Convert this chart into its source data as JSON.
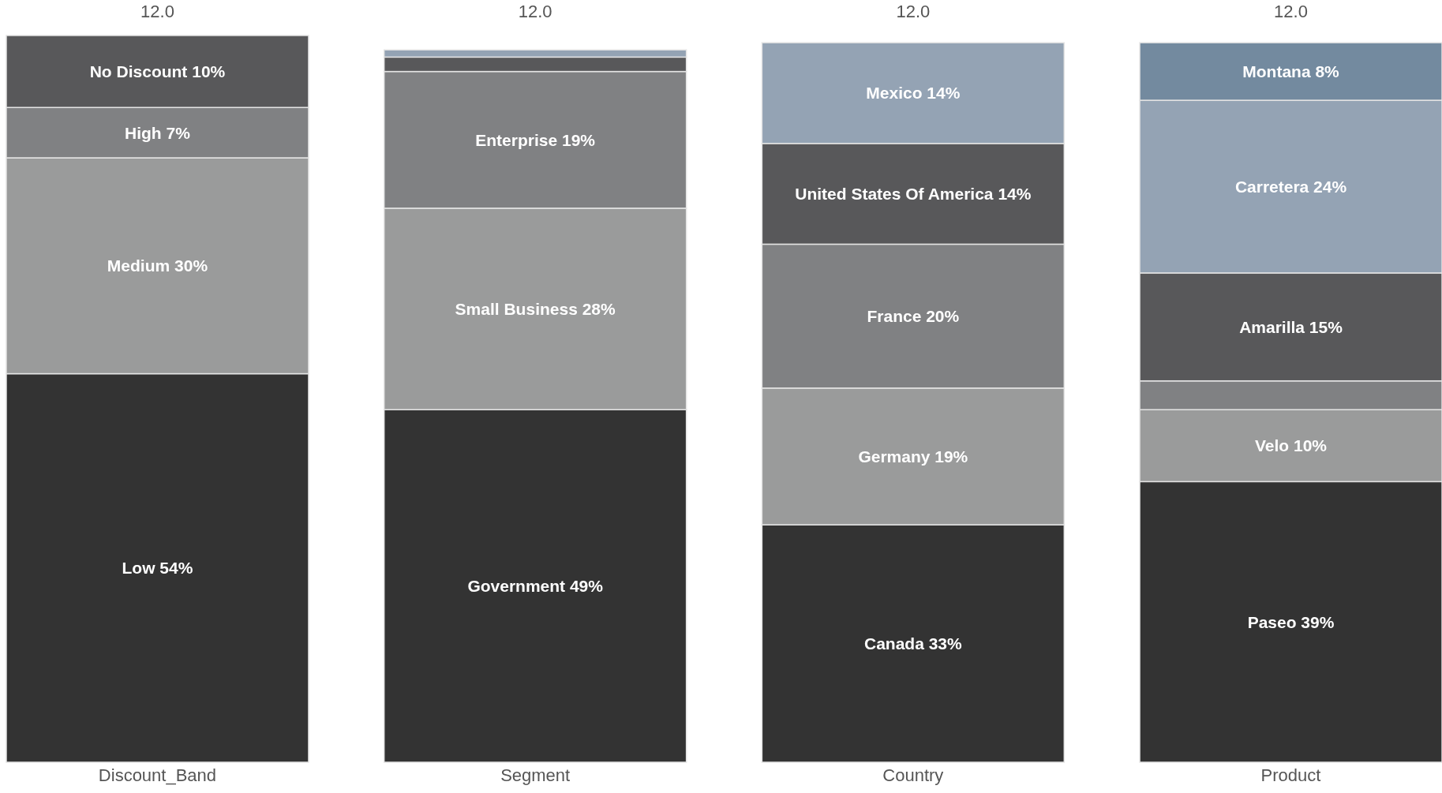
{
  "chart_data": {
    "type": "bar",
    "stacked": true,
    "categories": [
      "Discount_Band",
      "Segment",
      "Country",
      "Product"
    ],
    "tick_labels": "x",
    "annotations": [
      "12.0",
      "12.0",
      "12.0",
      "12.0"
    ],
    "series": [
      {
        "colors": [
          "#333333",
          "#333333",
          "#333333",
          "#333333"
        ],
        "values": [
          54,
          49,
          33,
          39
        ],
        "value_labels": [
          "Low 54%",
          "Government 49%",
          "Canada 33%",
          "Paseo 39%"
        ]
      },
      {
        "colors": [
          "#9a9b9b",
          "#9a9b9b",
          "#9a9b9b",
          "#9a9b9b"
        ],
        "values": [
          30,
          28,
          19,
          10
        ],
        "value_labels": [
          "Medium 30%",
          "Small Business 28%",
          "Germany 19%",
          "Velo 10%"
        ]
      },
      {
        "colors": [
          "#808183",
          "#808183",
          "#808183",
          "#808183"
        ],
        "values": [
          7,
          19,
          20,
          4
        ],
        "value_labels": [
          "High 7%",
          "Enterprise 19%",
          "France 20%",
          null
        ]
      },
      {
        "colors": [
          "#58585a",
          "#58585a",
          "#58585a",
          "#58585a"
        ],
        "values": [
          10,
          2,
          14,
          15
        ],
        "value_labels": [
          "No Discount 10%",
          null,
          "United States Of America 14%",
          "Amarilla 15%"
        ]
      },
      {
        "colors": [
          null,
          "#94a3b4",
          "#94a3b4",
          "#94a3b4"
        ],
        "values": [
          null,
          1,
          14,
          24
        ],
        "value_labels": [
          null,
          null,
          "Mexico 14%",
          "Carretera 24%"
        ]
      },
      {
        "colors": [
          null,
          null,
          null,
          "#738a9f"
        ],
        "values": [
          null,
          null,
          null,
          8
        ],
        "value_labels": [
          null,
          null,
          null,
          "Montana 8%"
        ]
      }
    ]
  }
}
